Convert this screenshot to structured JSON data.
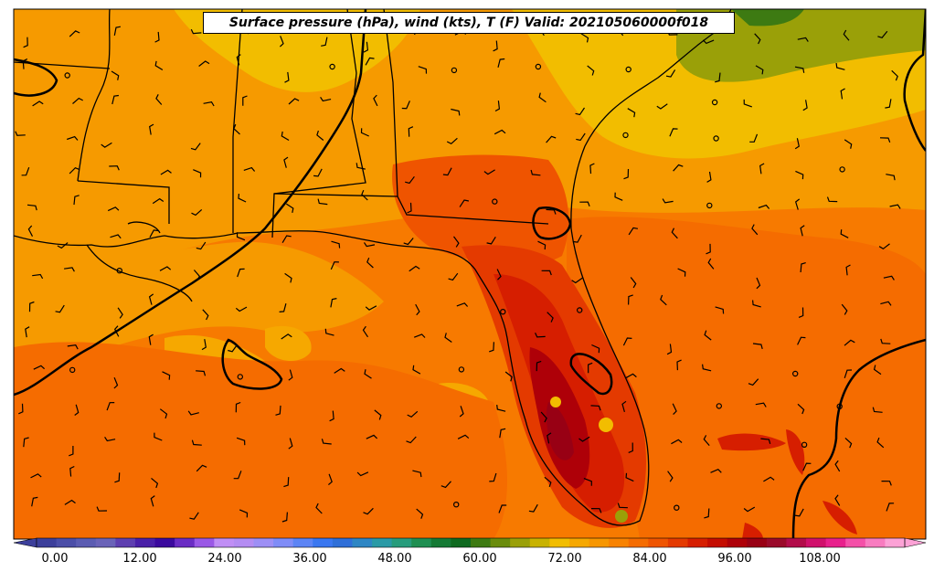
{
  "title": "Surface pressure (hPa), wind (kts), T (F) Valid: 202105060000f018",
  "colorbar": {
    "tick_labels": [
      "0.00",
      "12.00",
      "24.00",
      "36.00",
      "48.00",
      "60.00",
      "72.00",
      "84.00",
      "96.00",
      "108.00"
    ],
    "colors": [
      "#3c3f9b",
      "#4b4ea8",
      "#5b5cb2",
      "#6a63b8",
      "#5e3fb0",
      "#4a20a8",
      "#3b0a9e",
      "#6a2cc4",
      "#9a58e6",
      "#c08ef5",
      "#b48cf2",
      "#9d8ff5",
      "#7f8cf7",
      "#5c84f5",
      "#3a77f0",
      "#2f6fd8",
      "#2e86c4",
      "#2a9aa6",
      "#279c7c",
      "#1f8f52",
      "#157a35",
      "#0e6a20",
      "#3d7a12",
      "#6a8c0c",
      "#9aa008",
      "#c8b200",
      "#f2bd00",
      "#f6a800",
      "#f79600",
      "#f88200",
      "#f56c00",
      "#ef5400",
      "#e43a00",
      "#d61e00",
      "#c40c00",
      "#ae0008",
      "#980014",
      "#9a0a2a",
      "#b20c4a",
      "#d0106c",
      "#e8208c",
      "#f450a8",
      "#f87cc0",
      "#fca2d6"
    ]
  }
}
